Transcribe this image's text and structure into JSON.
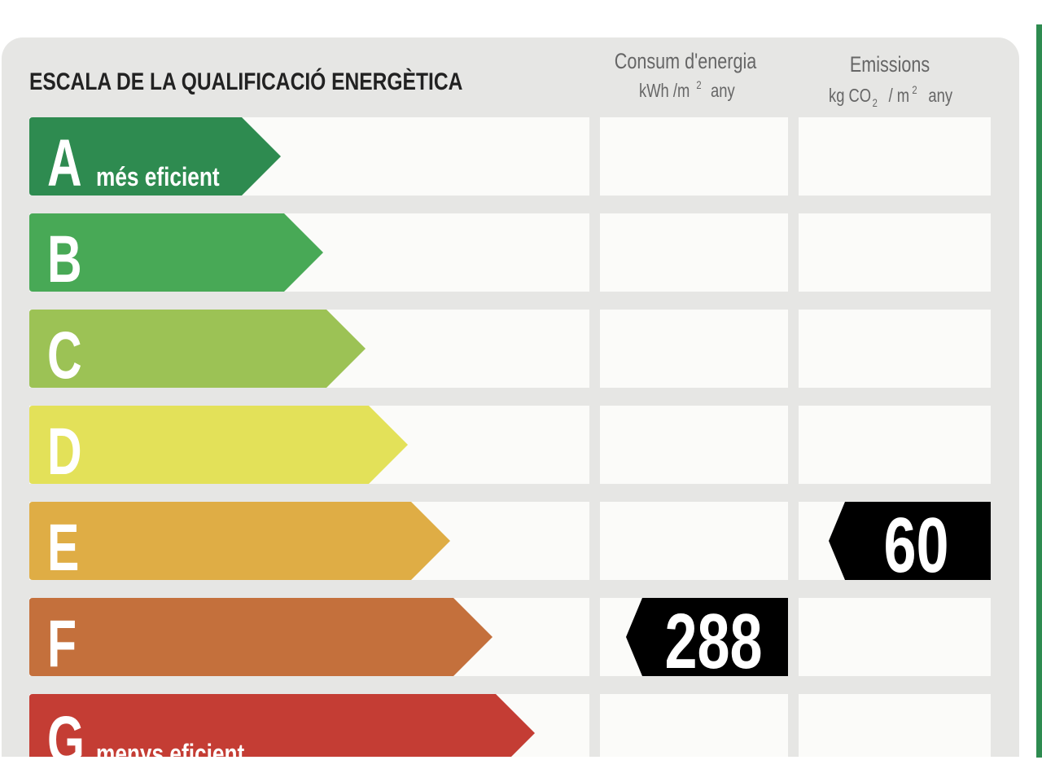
{
  "header": {
    "title": "ESCALA DE LA QUALIFICACIÓ ENERGÈTICA",
    "consumption": {
      "title": "Consum d'energia",
      "unit_a": "kWh /m",
      "unit_sup": "2",
      "unit_b": "any"
    },
    "emissions": {
      "title": "Emissions",
      "unit_a": "kg CO",
      "unit_sub": "2",
      "unit_b": "/ m",
      "unit_sup": "2",
      "unit_c": "any"
    }
  },
  "rows": [
    {
      "letter": "A",
      "label": "més eficient",
      "color": "#2e8b50"
    },
    {
      "letter": "B",
      "color": "#48a956"
    },
    {
      "letter": "C",
      "color": "#9cc255"
    },
    {
      "letter": "D",
      "color": "#e3e159"
    },
    {
      "letter": "E",
      "color": "#dfad45",
      "emissions": "60"
    },
    {
      "letter": "F",
      "color": "#c4703c",
      "consumption": "288"
    },
    {
      "letter": "G",
      "label": "menys eficient",
      "color": "#c43d34"
    }
  ]
}
